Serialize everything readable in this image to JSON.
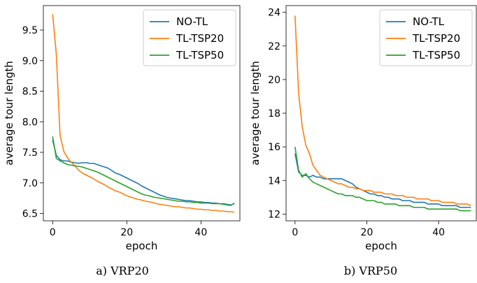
{
  "chart_data": [
    {
      "type": "line",
      "caption": "a) VRP20",
      "xlabel": "epoch",
      "ylabel": "average tour length",
      "xlim": [
        -2.5,
        50.5
      ],
      "ylim": [
        6.38,
        9.9
      ],
      "xticks": [
        0,
        20,
        40
      ],
      "yticks": [
        6.5,
        7.0,
        7.5,
        8.0,
        8.5,
        9.0,
        9.5
      ],
      "ytick_labels": [
        "6.5",
        "7.0",
        "7.5",
        "8.0",
        "8.5",
        "9.0",
        "9.5"
      ],
      "legend": "top-right",
      "x": [
        0,
        1,
        2,
        3,
        4,
        5,
        6,
        7,
        8,
        9,
        10,
        11,
        12,
        13,
        14,
        15,
        16,
        17,
        18,
        19,
        20,
        21,
        22,
        23,
        24,
        25,
        26,
        27,
        28,
        29,
        30,
        31,
        32,
        33,
        34,
        35,
        36,
        37,
        38,
        39,
        40,
        41,
        42,
        43,
        44,
        45,
        46,
        47,
        48,
        49
      ],
      "series": [
        {
          "name": "NO-TL",
          "color": "#1f77b4",
          "values": [
            7.7,
            7.45,
            7.38,
            7.36,
            7.36,
            7.34,
            7.33,
            7.32,
            7.33,
            7.33,
            7.32,
            7.32,
            7.3,
            7.28,
            7.26,
            7.24,
            7.2,
            7.16,
            7.14,
            7.11,
            7.08,
            7.05,
            7.02,
            6.99,
            6.95,
            6.92,
            6.89,
            6.86,
            6.83,
            6.8,
            6.78,
            6.76,
            6.75,
            6.74,
            6.73,
            6.72,
            6.71,
            6.71,
            6.7,
            6.69,
            6.69,
            6.68,
            6.68,
            6.67,
            6.67,
            6.66,
            6.66,
            6.65,
            6.64,
            6.66
          ]
        },
        {
          "name": "TL-TSP20",
          "color": "#ff7f0e",
          "values": [
            9.76,
            9.1,
            7.78,
            7.52,
            7.41,
            7.34,
            7.28,
            7.21,
            7.16,
            7.13,
            7.1,
            7.07,
            7.03,
            7.0,
            6.97,
            6.93,
            6.9,
            6.87,
            6.85,
            6.82,
            6.79,
            6.77,
            6.75,
            6.73,
            6.72,
            6.7,
            6.69,
            6.68,
            6.66,
            6.65,
            6.64,
            6.63,
            6.62,
            6.61,
            6.61,
            6.6,
            6.59,
            6.59,
            6.58,
            6.57,
            6.57,
            6.56,
            6.56,
            6.55,
            6.55,
            6.54,
            6.54,
            6.53,
            6.53,
            6.52
          ]
        },
        {
          "name": "TL-TSP50",
          "color": "#2ca02c",
          "values": [
            7.76,
            7.4,
            7.36,
            7.33,
            7.3,
            7.29,
            7.28,
            7.27,
            7.26,
            7.24,
            7.22,
            7.2,
            7.18,
            7.15,
            7.12,
            7.09,
            7.06,
            7.03,
            7.0,
            6.97,
            6.94,
            6.91,
            6.88,
            6.85,
            6.82,
            6.8,
            6.79,
            6.77,
            6.76,
            6.75,
            6.74,
            6.73,
            6.72,
            6.71,
            6.7,
            6.7,
            6.69,
            6.69,
            6.68,
            6.68,
            6.67,
            6.67,
            6.67,
            6.66,
            6.66,
            6.66,
            6.65,
            6.64,
            6.63,
            6.67
          ]
        }
      ]
    },
    {
      "type": "line",
      "caption": "b) VRP50",
      "xlabel": "epoch",
      "ylabel": "average tour length",
      "xlim": [
        -2.5,
        50.5
      ],
      "ylim": [
        11.6,
        24.4
      ],
      "xticks": [
        0,
        20,
        40
      ],
      "yticks": [
        12,
        14,
        16,
        18,
        20,
        22,
        24
      ],
      "ytick_labels": [
        "12",
        "14",
        "16",
        "18",
        "20",
        "22",
        "24"
      ],
      "legend": "top-right",
      "x": [
        0,
        1,
        2,
        3,
        4,
        5,
        6,
        7,
        8,
        9,
        10,
        11,
        12,
        13,
        14,
        15,
        16,
        17,
        18,
        19,
        20,
        21,
        22,
        23,
        24,
        25,
        26,
        27,
        28,
        29,
        30,
        31,
        32,
        33,
        34,
        35,
        36,
        37,
        38,
        39,
        40,
        41,
        42,
        43,
        44,
        45,
        46,
        47,
        48,
        49
      ],
      "series": [
        {
          "name": "NO-TL",
          "color": "#1f77b4",
          "values": [
            15.6,
            14.5,
            14.3,
            14.3,
            14.2,
            14.3,
            14.2,
            14.2,
            14.1,
            14.1,
            14.1,
            14.1,
            14.1,
            14.1,
            14.0,
            13.9,
            13.8,
            13.6,
            13.5,
            13.4,
            13.3,
            13.2,
            13.2,
            13.1,
            13.1,
            13.0,
            13.0,
            12.9,
            12.9,
            12.9,
            12.8,
            12.8,
            12.8,
            12.7,
            12.7,
            12.7,
            12.7,
            12.6,
            12.6,
            12.6,
            12.6,
            12.5,
            12.5,
            12.5,
            12.5,
            12.5,
            12.4,
            12.4,
            12.4,
            12.4
          ]
        },
        {
          "name": "TL-TSP20",
          "color": "#ff7f0e",
          "values": [
            23.8,
            19.2,
            17.2,
            16.1,
            15.6,
            14.9,
            14.6,
            14.3,
            14.2,
            14.1,
            14.0,
            13.9,
            13.8,
            13.8,
            13.7,
            13.6,
            13.6,
            13.5,
            13.5,
            13.4,
            13.4,
            13.4,
            13.3,
            13.3,
            13.3,
            13.2,
            13.2,
            13.2,
            13.1,
            13.1,
            13.1,
            13.0,
            13.0,
            13.0,
            12.9,
            12.9,
            12.9,
            12.9,
            12.8,
            12.8,
            12.8,
            12.7,
            12.7,
            12.7,
            12.7,
            12.6,
            12.6,
            12.6,
            12.6,
            12.5
          ]
        },
        {
          "name": "TL-TSP50",
          "color": "#2ca02c",
          "values": [
            16.0,
            14.6,
            14.2,
            14.4,
            14.1,
            13.9,
            13.8,
            13.7,
            13.6,
            13.5,
            13.4,
            13.3,
            13.2,
            13.2,
            13.1,
            13.1,
            13.1,
            13.0,
            13.0,
            12.9,
            12.8,
            12.8,
            12.8,
            12.7,
            12.7,
            12.6,
            12.6,
            12.6,
            12.6,
            12.5,
            12.5,
            12.5,
            12.5,
            12.4,
            12.4,
            12.4,
            12.4,
            12.3,
            12.3,
            12.3,
            12.3,
            12.3,
            12.3,
            12.3,
            12.3,
            12.3,
            12.2,
            12.2,
            12.2,
            12.2
          ]
        }
      ]
    }
  ]
}
